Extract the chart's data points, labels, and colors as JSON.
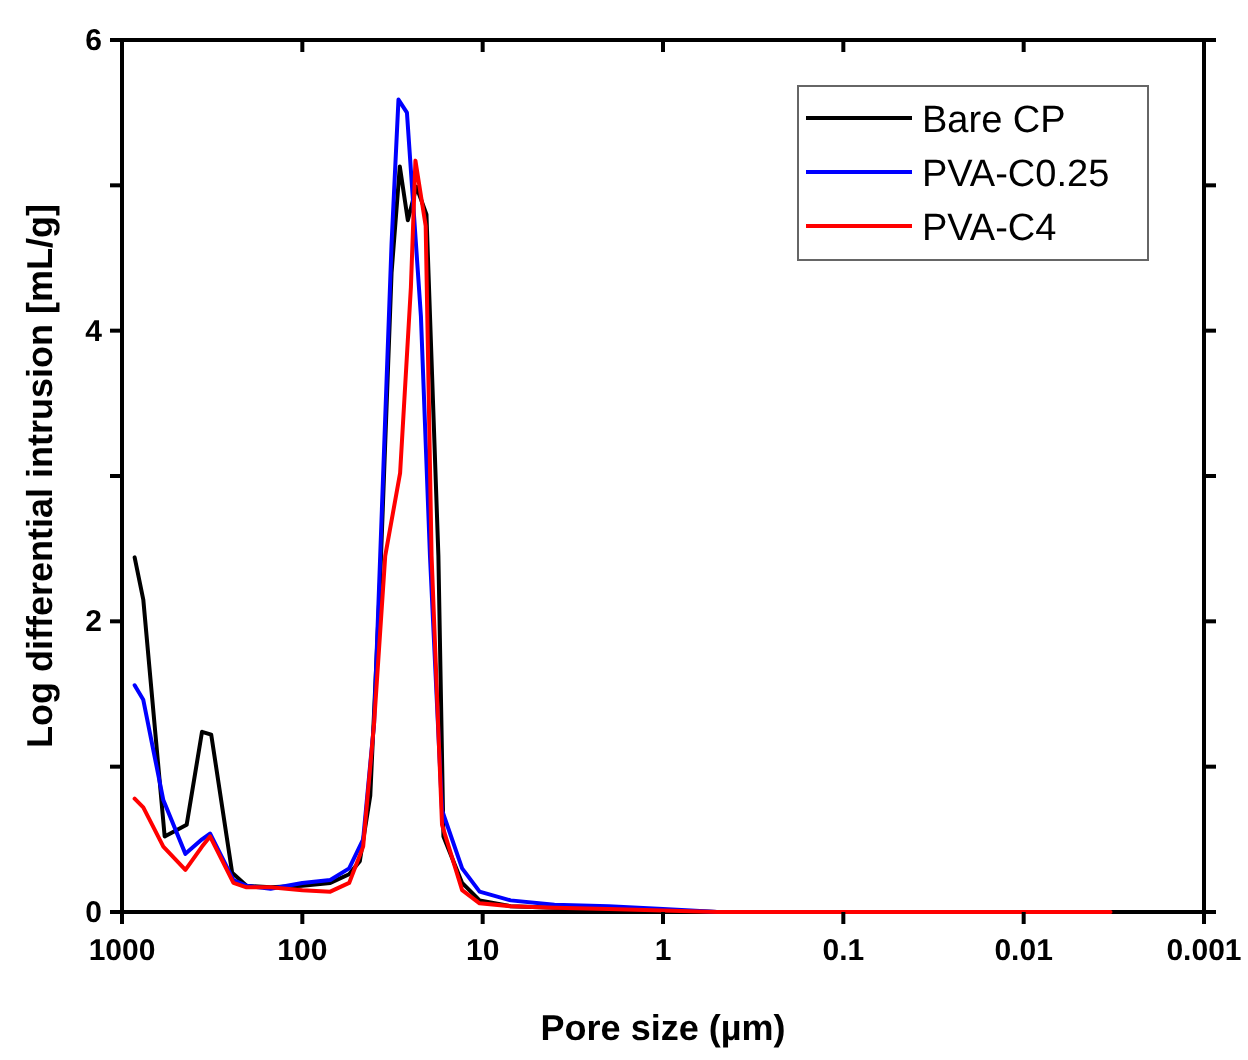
{
  "chart_data": {
    "type": "line",
    "xlabel": "Pore size (µm)",
    "ylabel": "Log differential intrusion [mL/g]",
    "log": "x",
    "xlim": [
      1000,
      0.001
    ],
    "xticks": [
      1000,
      100,
      10,
      1,
      0.1,
      0.01,
      0.001
    ],
    "ylim": [
      0,
      6
    ],
    "yticks": [
      0,
      {
        "value": 1,
        "label": null
      },
      2,
      {
        "value": 3,
        "label": null
      },
      4,
      {
        "value": 5,
        "label": null
      },
      6
    ],
    "legend": "top right",
    "grid": false,
    "line_style": "solid",
    "marker": "none",
    "series": [
      {
        "name": "Bare CP",
        "color": "#000000",
        "x": [
          851,
          762,
          580,
          438,
          360,
          320,
          245,
          204,
          150,
          100,
          70,
          55,
          48,
          42,
          37,
          32,
          28.8,
          26,
          23.3,
          20.5,
          17.6,
          16.5,
          13,
          10.4,
          7,
          4,
          2,
          1,
          0.5,
          0.1,
          0.01,
          0.0033
        ],
        "values": [
          2.44,
          2.15,
          0.52,
          0.6,
          1.24,
          1.22,
          0.27,
          0.18,
          0.17,
          0.18,
          0.2,
          0.26,
          0.35,
          0.8,
          2.3,
          4.4,
          5.13,
          4.76,
          4.99,
          4.8,
          2.45,
          0.52,
          0.2,
          0.08,
          0.04,
          0.03,
          0.02,
          0.01,
          0,
          0,
          0,
          0
        ]
      },
      {
        "name": "PVA-C0.25",
        "color": "#0000ff",
        "x": [
          851,
          762,
          590,
          445,
          360,
          325,
          241,
          204,
          150,
          100,
          70,
          55,
          46,
          40,
          37,
          32,
          29.3,
          26.3,
          22,
          19.6,
          16.8,
          13,
          10.4,
          7,
          4,
          2,
          1,
          0.7,
          0.5
        ],
        "values": [
          1.56,
          1.46,
          0.77,
          0.4,
          0.5,
          0.54,
          0.22,
          0.18,
          0.16,
          0.2,
          0.22,
          0.3,
          0.5,
          1.3,
          2.45,
          4.6,
          5.59,
          5.5,
          4.1,
          2.45,
          0.7,
          0.3,
          0.14,
          0.08,
          0.05,
          0.04,
          0.02,
          0.01,
          0
        ]
      },
      {
        "name": "PVA-C4",
        "color": "#ff0000",
        "x": [
          851,
          762,
          590,
          445,
          360,
          325,
          241,
          204,
          150,
          100,
          70,
          55,
          46,
          40,
          34.7,
          28.7,
          25,
          23.6,
          20.7,
          19.2,
          16.8,
          13,
          10.4,
          7,
          4,
          2,
          1,
          0.5,
          0.1,
          0.01,
          0.0033
        ],
        "values": [
          0.78,
          0.72,
          0.45,
          0.29,
          0.45,
          0.52,
          0.2,
          0.17,
          0.17,
          0.15,
          0.14,
          0.2,
          0.45,
          1.3,
          2.45,
          3.02,
          4.3,
          5.17,
          4.72,
          2.45,
          0.6,
          0.15,
          0.06,
          0.04,
          0.03,
          0.02,
          0.01,
          0,
          0,
          0,
          0
        ]
      }
    ]
  }
}
